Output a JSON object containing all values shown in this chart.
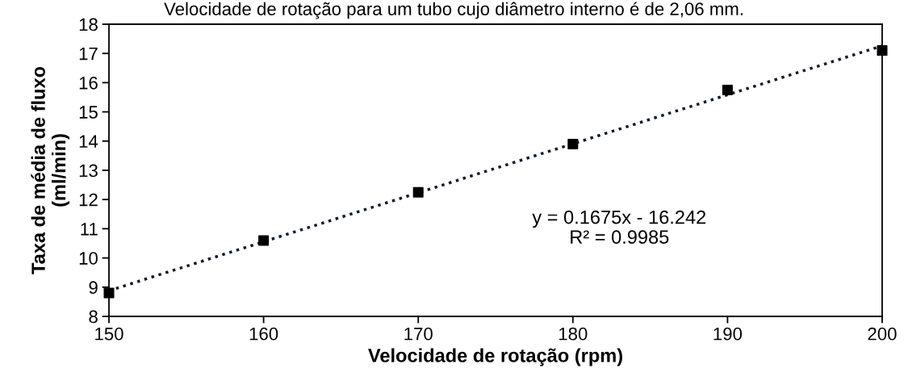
{
  "chart_data": {
    "type": "scatter",
    "title": "Velocidade de rotação para um tubo cujo diâmetro interno é de 2,06 mm.",
    "xlabel": "Velocidade de rotação (rpm)",
    "ylabel": "Taxa de média de fluxo\n(ml/min)",
    "series": [
      {
        "color": "#000000",
        "marker": "square",
        "x": [
          150,
          160,
          170,
          180,
          190,
          200
        ],
        "values": [
          8.8,
          10.6,
          12.25,
          13.9,
          15.75,
          17.1
        ]
      },
      {
        "type": "line",
        "color": "#0d1a2e",
        "line_style": "dotted",
        "marker": "none",
        "x": [
          150,
          200
        ],
        "values": [
          8.88,
          17.26
        ]
      }
    ],
    "annotations": [
      "y = 0.1675x - 16.242\nR² = 0.9985"
    ],
    "xlim": [
      150,
      200
    ],
    "xticks": [
      150,
      160,
      170,
      180,
      190,
      200
    ],
    "ylim": [
      8,
      18
    ],
    "yticks": [
      8,
      9,
      10,
      11,
      12,
      13,
      14,
      15,
      16,
      17,
      18
    ],
    "grid": false,
    "legend": false
  }
}
